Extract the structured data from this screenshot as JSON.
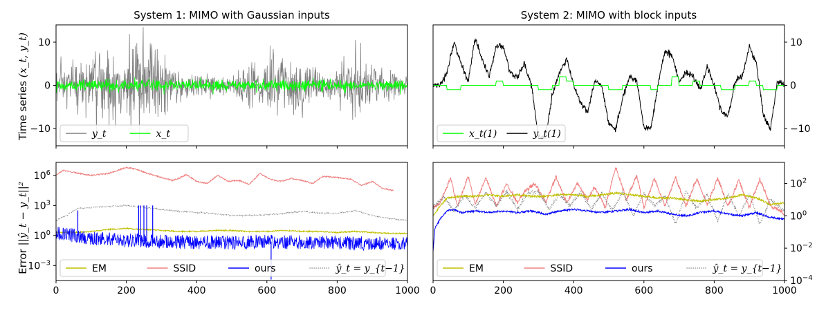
{
  "figure": {
    "panels": [
      {
        "id": "p1",
        "title": "System 1: MIMO with Gaussian inputs",
        "ylabel": "Time series",
        "ylabel_math": "(x_t, y_t)",
        "xlim": [
          0,
          1000
        ],
        "ylim": [
          -14,
          14
        ],
        "yscale": "linear",
        "yticks": [
          -10,
          0,
          10
        ],
        "ytick_labels": [
          "−10",
          "0",
          "10"
        ],
        "ytick_side": "left",
        "show_xticklabels": false,
        "legend": {
          "loc": "lower-left",
          "entries": [
            {
              "label": "y_t",
              "color": "#808080"
            },
            {
              "label": "x_t",
              "color": "#00ff00"
            }
          ]
        }
      },
      {
        "id": "p2",
        "title": "System 2: MIMO with block inputs",
        "ylabel": "",
        "xlim": [
          0,
          1000
        ],
        "ylim": [
          -14,
          14
        ],
        "yscale": "linear",
        "yticks": [
          -10,
          0,
          10
        ],
        "ytick_labels": [
          "−10",
          "0",
          "10"
        ],
        "ytick_side": "right",
        "show_xticklabels": false,
        "legend": {
          "loc": "lower-left",
          "entries": [
            {
              "label": "x_t(1)",
              "color": "#00ff00"
            },
            {
              "label": "y_t(1)",
              "color": "#000000"
            }
          ]
        }
      },
      {
        "id": "p3",
        "title": "",
        "ylabel": "Error",
        "ylabel_math": "||ŷ_t − y_t||²",
        "xlim": [
          0,
          1000
        ],
        "ylim": [
          -4.5,
          7.3
        ],
        "yscale": "log",
        "yticks": [
          -3,
          0,
          3,
          6
        ],
        "ytick_side": "left",
        "show_xticklabels": true,
        "xticks": [
          0,
          200,
          400,
          600,
          800,
          1000
        ],
        "legend": {
          "loc": "lower-left",
          "entries": [
            {
              "label": "EM",
              "color": "#bfbf00",
              "style": "solid"
            },
            {
              "label": "SSID",
              "color": "#f08080",
              "style": "solid"
            },
            {
              "label": "ours",
              "color": "#0000ff",
              "style": "solid"
            },
            {
              "label": "ŷ_t = y_{t−1}",
              "color": "#808080",
              "style": "dotted"
            }
          ]
        }
      },
      {
        "id": "p4",
        "title": "",
        "ylabel": "",
        "xlim": [
          0,
          1000
        ],
        "ylim": [
          -4,
          3.3
        ],
        "yscale": "log",
        "yticks": [
          -4,
          -2,
          0,
          2
        ],
        "ytick_side": "right",
        "show_xticklabels": true,
        "xticks": [
          0,
          200,
          400,
          600,
          800,
          1000
        ],
        "legend": {
          "loc": "lower-left",
          "entries": [
            {
              "label": "EM",
              "color": "#bfbf00",
              "style": "solid"
            },
            {
              "label": "SSID",
              "color": "#f08080",
              "style": "solid"
            },
            {
              "label": "ours",
              "color": "#0000ff",
              "style": "solid"
            },
            {
              "label": "ŷ_t = y_{t−1}",
              "color": "#808080",
              "style": "dotted"
            }
          ]
        }
      }
    ]
  },
  "chart_data": [
    {
      "type": "line",
      "panel": "p1",
      "title": "System 1: MIMO with Gaussian inputs",
      "ylabel": "Time series (x_t, y_t)",
      "xlim": [
        0,
        1000
      ],
      "ylim": [
        -14,
        14
      ],
      "grid": false,
      "series": [
        {
          "name": "y_t",
          "color": "#808080",
          "kind": "noise_band",
          "x": [
            0,
            50,
            100,
            150,
            200,
            250,
            300,
            350,
            400,
            450,
            500,
            550,
            600,
            650,
            700,
            750,
            800,
            850,
            900,
            950,
            1000
          ],
          "amplitude": [
            4,
            7,
            9,
            10,
            12,
            13,
            7,
            4,
            3.5,
            3,
            2,
            6,
            7,
            9,
            7,
            4,
            4,
            10,
            5,
            4,
            3
          ]
        },
        {
          "name": "x_t",
          "color": "#00ff00",
          "kind": "noise_band",
          "x": [
            0,
            1000
          ],
          "amplitude": [
            1.5,
            1.5
          ]
        }
      ]
    },
    {
      "type": "line",
      "panel": "p2",
      "title": "System 2: MIMO with block inputs",
      "xlim": [
        0,
        1000
      ],
      "ylim": [
        -14,
        14
      ],
      "grid": false,
      "series": [
        {
          "name": "y_t(1)",
          "color": "#000000",
          "x": [
            0,
            20,
            40,
            60,
            80,
            100,
            120,
            140,
            160,
            180,
            200,
            220,
            240,
            260,
            280,
            300,
            320,
            340,
            360,
            380,
            400,
            420,
            440,
            460,
            480,
            500,
            520,
            540,
            560,
            580,
            600,
            620,
            640,
            660,
            680,
            700,
            720,
            740,
            760,
            780,
            800,
            820,
            840,
            860,
            880,
            900,
            920,
            940,
            960,
            980,
            1000
          ],
          "y": [
            0,
            0,
            3,
            10,
            5,
            1,
            11,
            6,
            2,
            9,
            9,
            3,
            2,
            5,
            0,
            -12,
            -12,
            -2,
            3,
            6,
            0,
            -4,
            -6,
            1,
            0,
            -9,
            -10,
            -3,
            2,
            1,
            -10,
            -10,
            0,
            8,
            7,
            1,
            3,
            2,
            -1,
            4,
            0,
            -6,
            -7,
            1,
            2,
            9,
            5,
            -7,
            -10,
            1,
            0
          ]
        },
        {
          "name": "x_t(1)",
          "color": "#00ff00",
          "x": [
            0,
            20,
            40,
            60,
            80,
            100,
            120,
            140,
            160,
            180,
            200,
            220,
            240,
            260,
            280,
            300,
            320,
            340,
            360,
            380,
            400,
            420,
            440,
            460,
            480,
            500,
            520,
            540,
            560,
            580,
            600,
            620,
            640,
            660,
            680,
            700,
            720,
            740,
            760,
            780,
            800,
            820,
            840,
            860,
            880,
            900,
            920,
            940,
            960,
            980,
            1000
          ],
          "y": [
            0,
            0,
            -1,
            -1,
            0,
            0,
            0,
            0,
            0,
            1,
            0,
            0,
            0,
            0,
            0,
            -1,
            -1,
            0,
            2,
            1,
            0,
            0,
            0,
            0,
            0,
            -1,
            -1,
            0,
            0,
            0,
            0,
            -1,
            0,
            0,
            2,
            0,
            0,
            1,
            0,
            0,
            0,
            -1,
            -1,
            0,
            0,
            1,
            0,
            -1,
            -1,
            0,
            0
          ],
          "step": true
        }
      ]
    },
    {
      "type": "line",
      "panel": "p3",
      "ylabel": "Error ||ŷ_t − y_t||²",
      "yscale": "log",
      "ylim_log10": [
        -4.5,
        7.3
      ],
      "xlim": [
        0,
        1000
      ],
      "grid": false,
      "series": [
        {
          "name": "SSID",
          "color": "#f08080",
          "x": [
            0,
            20,
            50,
            100,
            150,
            200,
            230,
            260,
            300,
            330,
            350,
            370,
            400,
            430,
            460,
            490,
            520,
            550,
            580,
            610,
            640,
            670,
            700,
            730,
            760,
            800,
            840,
            870,
            900,
            930,
            960
          ],
          "log10_y": [
            6,
            6.5,
            6.3,
            6.0,
            6.2,
            6.8,
            6.6,
            6.2,
            5.8,
            5.5,
            5.7,
            6.1,
            5.4,
            5.2,
            6.0,
            5.4,
            5.5,
            5.1,
            6.2,
            5.6,
            5.4,
            5.7,
            5.5,
            5.2,
            5.9,
            5.8,
            5.6,
            5.0,
            5.4,
            4.7,
            4.5
          ]
        },
        {
          "name": "ŷ_t = y_{t−1}",
          "color": "#808080",
          "style": "dotted",
          "x": [
            0,
            30,
            60,
            100,
            150,
            200,
            250,
            300,
            350,
            400,
            450,
            500,
            550,
            600,
            650,
            700,
            750,
            800,
            850,
            900,
            950,
            1000
          ],
          "log10_y": [
            1.5,
            2.0,
            2.7,
            2.8,
            2.9,
            3.0,
            2.8,
            2.6,
            2.4,
            2.3,
            2.2,
            2.0,
            2.0,
            2.1,
            2.2,
            2.4,
            2.2,
            2.2,
            2.5,
            2.0,
            1.7,
            1.5
          ]
        },
        {
          "name": "EM",
          "color": "#bfbf00",
          "x": [
            0,
            50,
            100,
            150,
            200,
            250,
            300,
            350,
            400,
            450,
            500,
            550,
            600,
            650,
            700,
            750,
            800,
            850,
            900,
            950,
            1000
          ],
          "log10_y": [
            0.3,
            0.3,
            0.4,
            0.6,
            0.7,
            0.6,
            0.5,
            0.4,
            0.4,
            0.5,
            0.5,
            0.4,
            0.4,
            0.5,
            0.4,
            0.4,
            0.3,
            0.4,
            0.3,
            0.2,
            0.2
          ]
        },
        {
          "name": "ours",
          "color": "#0000ff",
          "kind": "noise_band",
          "x": [
            0,
            50,
            100,
            200,
            300,
            400,
            500,
            600,
            700,
            800,
            900,
            1000
          ],
          "log10_center": [
            0.3,
            0.0,
            -0.3,
            -0.5,
            -0.6,
            -0.7,
            -0.7,
            -0.6,
            -0.7,
            -0.7,
            -0.8,
            -0.8
          ],
          "log10_spread": [
            1.0,
            1.0,
            1.0,
            1.0,
            1.0,
            1.0,
            1.0,
            1.0,
            1.0,
            1.0,
            1.0,
            1.0
          ],
          "spikes": [
            {
              "x": 62,
              "log10_y": 2.5
            },
            {
              "x": 235,
              "log10_y": 3.0
            },
            {
              "x": 240,
              "log10_y": 3.0
            },
            {
              "x": 250,
              "log10_y": 3.0
            },
            {
              "x": 258,
              "log10_y": 3.0
            },
            {
              "x": 275,
              "log10_y": 3.0
            },
            {
              "x": 612,
              "log10_y": -4.4
            }
          ]
        }
      ]
    },
    {
      "type": "line",
      "panel": "p4",
      "yscale": "log",
      "ylim_log10": [
        -4,
        3.3
      ],
      "xlim": [
        0,
        1000
      ],
      "grid": false,
      "series": [
        {
          "name": "SSID",
          "color": "#f08080",
          "kind": "oscillating",
          "x": [
            0,
            20,
            50,
            70,
            100,
            120,
            150,
            180,
            210,
            240,
            260,
            290,
            320,
            350,
            380,
            410,
            440,
            460,
            490,
            520,
            550,
            580,
            600,
            630,
            660,
            690,
            720,
            750,
            780,
            810,
            840,
            870,
            900,
            930,
            960,
            990,
            1000
          ],
          "log10_y": [
            0.5,
            0.8,
            2.3,
            0.6,
            2.5,
            0.7,
            2.4,
            0.6,
            2.0,
            0.8,
            1.5,
            2.0,
            0.8,
            2.4,
            0.8,
            2.0,
            1.0,
            1.8,
            0.5,
            3.0,
            1.0,
            2.5,
            0.5,
            2.3,
            0.6,
            2.4,
            0.6,
            2.3,
            0.7,
            2.3,
            0.6,
            2.2,
            0.5,
            2.3,
            0.6,
            0.3,
            0.0
          ]
        },
        {
          "name": "ŷ_t = y_{t−1}",
          "color": "#808080",
          "style": "dotted",
          "kind": "oscillating",
          "x": [
            0,
            30,
            60,
            90,
            120,
            150,
            180,
            210,
            240,
            270,
            300,
            330,
            360,
            390,
            420,
            450,
            480,
            510,
            540,
            570,
            600,
            630,
            660,
            690,
            720,
            750,
            780,
            810,
            840,
            870,
            900,
            930,
            960,
            1000
          ],
          "log10_y": [
            0.5,
            1.2,
            0.3,
            1.3,
            0.5,
            1.4,
            0.6,
            1.5,
            0.4,
            1.4,
            1.5,
            0.4,
            1.3,
            0.6,
            1.5,
            0.4,
            1.4,
            0.3,
            1.5,
            0.0,
            1.4,
            0.6,
            1.2,
            -0.5,
            1.5,
            0.4,
            1.3,
            -0.3,
            1.4,
            0.0,
            1.3,
            -0.5,
            1.0,
            0.3
          ]
        },
        {
          "name": "EM",
          "color": "#bfbf00",
          "x": [
            0,
            20,
            40,
            80,
            120,
            160,
            200,
            240,
            280,
            320,
            360,
            400,
            440,
            480,
            520,
            560,
            600,
            640,
            680,
            720,
            760,
            800,
            840,
            880,
            920,
            960,
            1000
          ],
          "log10_y": [
            0.0,
            0.6,
            1.1,
            1.2,
            1.2,
            1.3,
            1.2,
            1.3,
            1.2,
            1.2,
            1.3,
            1.3,
            1.2,
            1.3,
            1.4,
            1.3,
            1.2,
            1.1,
            1.1,
            1.0,
            0.9,
            1.0,
            1.1,
            1.3,
            1.1,
            0.7,
            0.8
          ]
        },
        {
          "name": "ours",
          "color": "#0000ff",
          "x": [
            0,
            5,
            20,
            40,
            60,
            80,
            120,
            160,
            200,
            240,
            280,
            320,
            360,
            400,
            440,
            480,
            520,
            560,
            600,
            640,
            680,
            720,
            760,
            800,
            840,
            880,
            920,
            960,
            1000
          ],
          "log10_y": [
            -2.2,
            -0.8,
            -0.2,
            0.3,
            0.4,
            0.2,
            0.3,
            0.2,
            0.3,
            0.2,
            0.3,
            0.1,
            0.3,
            0.4,
            0.3,
            0.2,
            0.3,
            0.4,
            0.2,
            0.3,
            0.1,
            0.0,
            0.2,
            0.3,
            0.1,
            0.0,
            0.2,
            -0.1,
            -0.2
          ]
        }
      ]
    }
  ]
}
